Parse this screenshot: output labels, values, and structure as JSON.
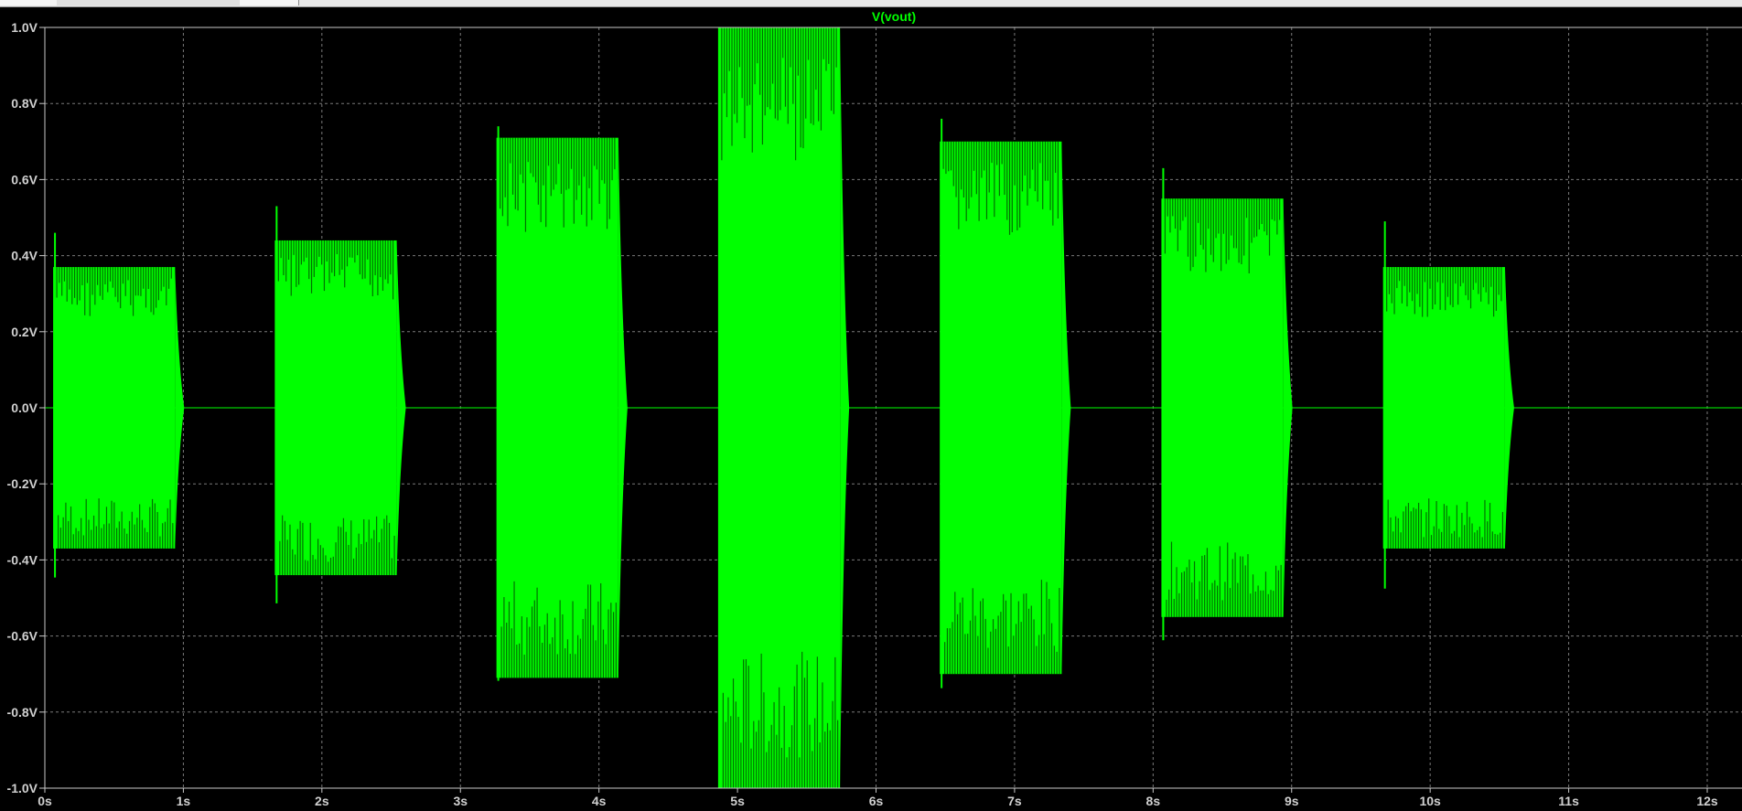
{
  "chart_data": {
    "type": "line",
    "title": "V(vout)",
    "xlabel": "",
    "ylabel": "",
    "xlim": [
      0,
      12
    ],
    "ylim": [
      -1.0,
      1.0
    ],
    "x_ticks": [
      "0s",
      "1s",
      "2s",
      "3s",
      "4s",
      "5s",
      "6s",
      "7s",
      "8s",
      "9s",
      "10s",
      "11s",
      "12s"
    ],
    "y_ticks": [
      "1.0V",
      "0.8V",
      "0.6V",
      "0.4V",
      "0.2V",
      "0.0V",
      "-0.2V",
      "-0.4V",
      "-0.6V",
      "-0.8V",
      "-1.0V"
    ],
    "grid": true,
    "colors": {
      "trace": "#00ff00",
      "background": "#000000",
      "grid": "#7a7a7a",
      "axis": "#c8c8c8"
    },
    "series": [
      {
        "name": "V(vout)",
        "bursts": [
          {
            "start": 0.06,
            "end": 0.94,
            "amplitude": 0.37,
            "overshoot": 0.46
          },
          {
            "start": 1.66,
            "end": 2.54,
            "amplitude": 0.44,
            "overshoot": 0.53
          },
          {
            "start": 3.26,
            "end": 4.14,
            "amplitude": 0.71,
            "overshoot": 0.74
          },
          {
            "start": 4.86,
            "end": 5.74,
            "amplitude": 1.0,
            "overshoot": 1.0
          },
          {
            "start": 6.46,
            "end": 7.34,
            "amplitude": 0.7,
            "overshoot": 0.76
          },
          {
            "start": 8.06,
            "end": 8.94,
            "amplitude": 0.55,
            "overshoot": 0.63
          },
          {
            "start": 9.66,
            "end": 10.54,
            "amplitude": 0.37,
            "overshoot": 0.49
          }
        ]
      }
    ]
  }
}
